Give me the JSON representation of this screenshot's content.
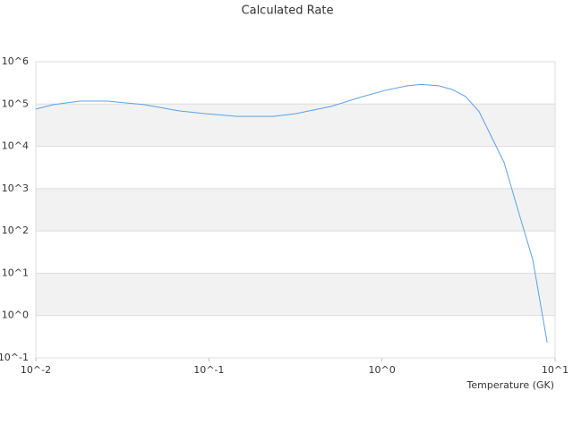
{
  "chart_data": {
    "type": "line",
    "title": "Calculated Rate",
    "x_label": "Temperature (GK)",
    "xscale": "log",
    "yscale": "log",
    "grid": true,
    "bands": true,
    "line_color": "#5aa0e6",
    "band_color": "#f2f2f2",
    "x": [
      0.01,
      0.0127,
      0.018,
      0.026,
      0.042,
      0.067,
      0.096,
      0.146,
      0.235,
      0.316,
      0.51,
      0.73,
      1.04,
      1.4,
      1.68,
      2.13,
      2.55,
      3.04,
      3.64,
      4.35,
      5.08,
      6.22,
      7.43,
      9.0
    ],
    "series": [
      {
        "values": [
          76000,
          97000,
          117000,
          117000,
          97000,
          69000,
          59000,
          51000,
          51000,
          59000,
          88000,
          140000,
          210000,
          270000,
          290000,
          270000,
          220000,
          150000,
          66000,
          15000,
          4100,
          240,
          21,
          0.23
        ]
      }
    ],
    "xlim": [
      0.01,
      10
    ],
    "ylim": [
      0.1,
      1000000
    ],
    "xticks": [
      {
        "value": 0.01,
        "label": "10^-2"
      },
      {
        "value": 0.1,
        "label": "10^-1"
      },
      {
        "value": 1,
        "label": "10^0"
      },
      {
        "value": 10,
        "label": "10^1"
      }
    ],
    "yticks": [
      {
        "value": 0.1,
        "label": "10^-1"
      },
      {
        "value": 1,
        "label": "10^0"
      },
      {
        "value": 10,
        "label": "10^1"
      },
      {
        "value": 100,
        "label": "10^2"
      },
      {
        "value": 1000,
        "label": "10^3"
      },
      {
        "value": 10000,
        "label": "10^4"
      },
      {
        "value": 100000,
        "label": "10^5"
      },
      {
        "value": 1000000,
        "label": "10^6"
      }
    ]
  }
}
